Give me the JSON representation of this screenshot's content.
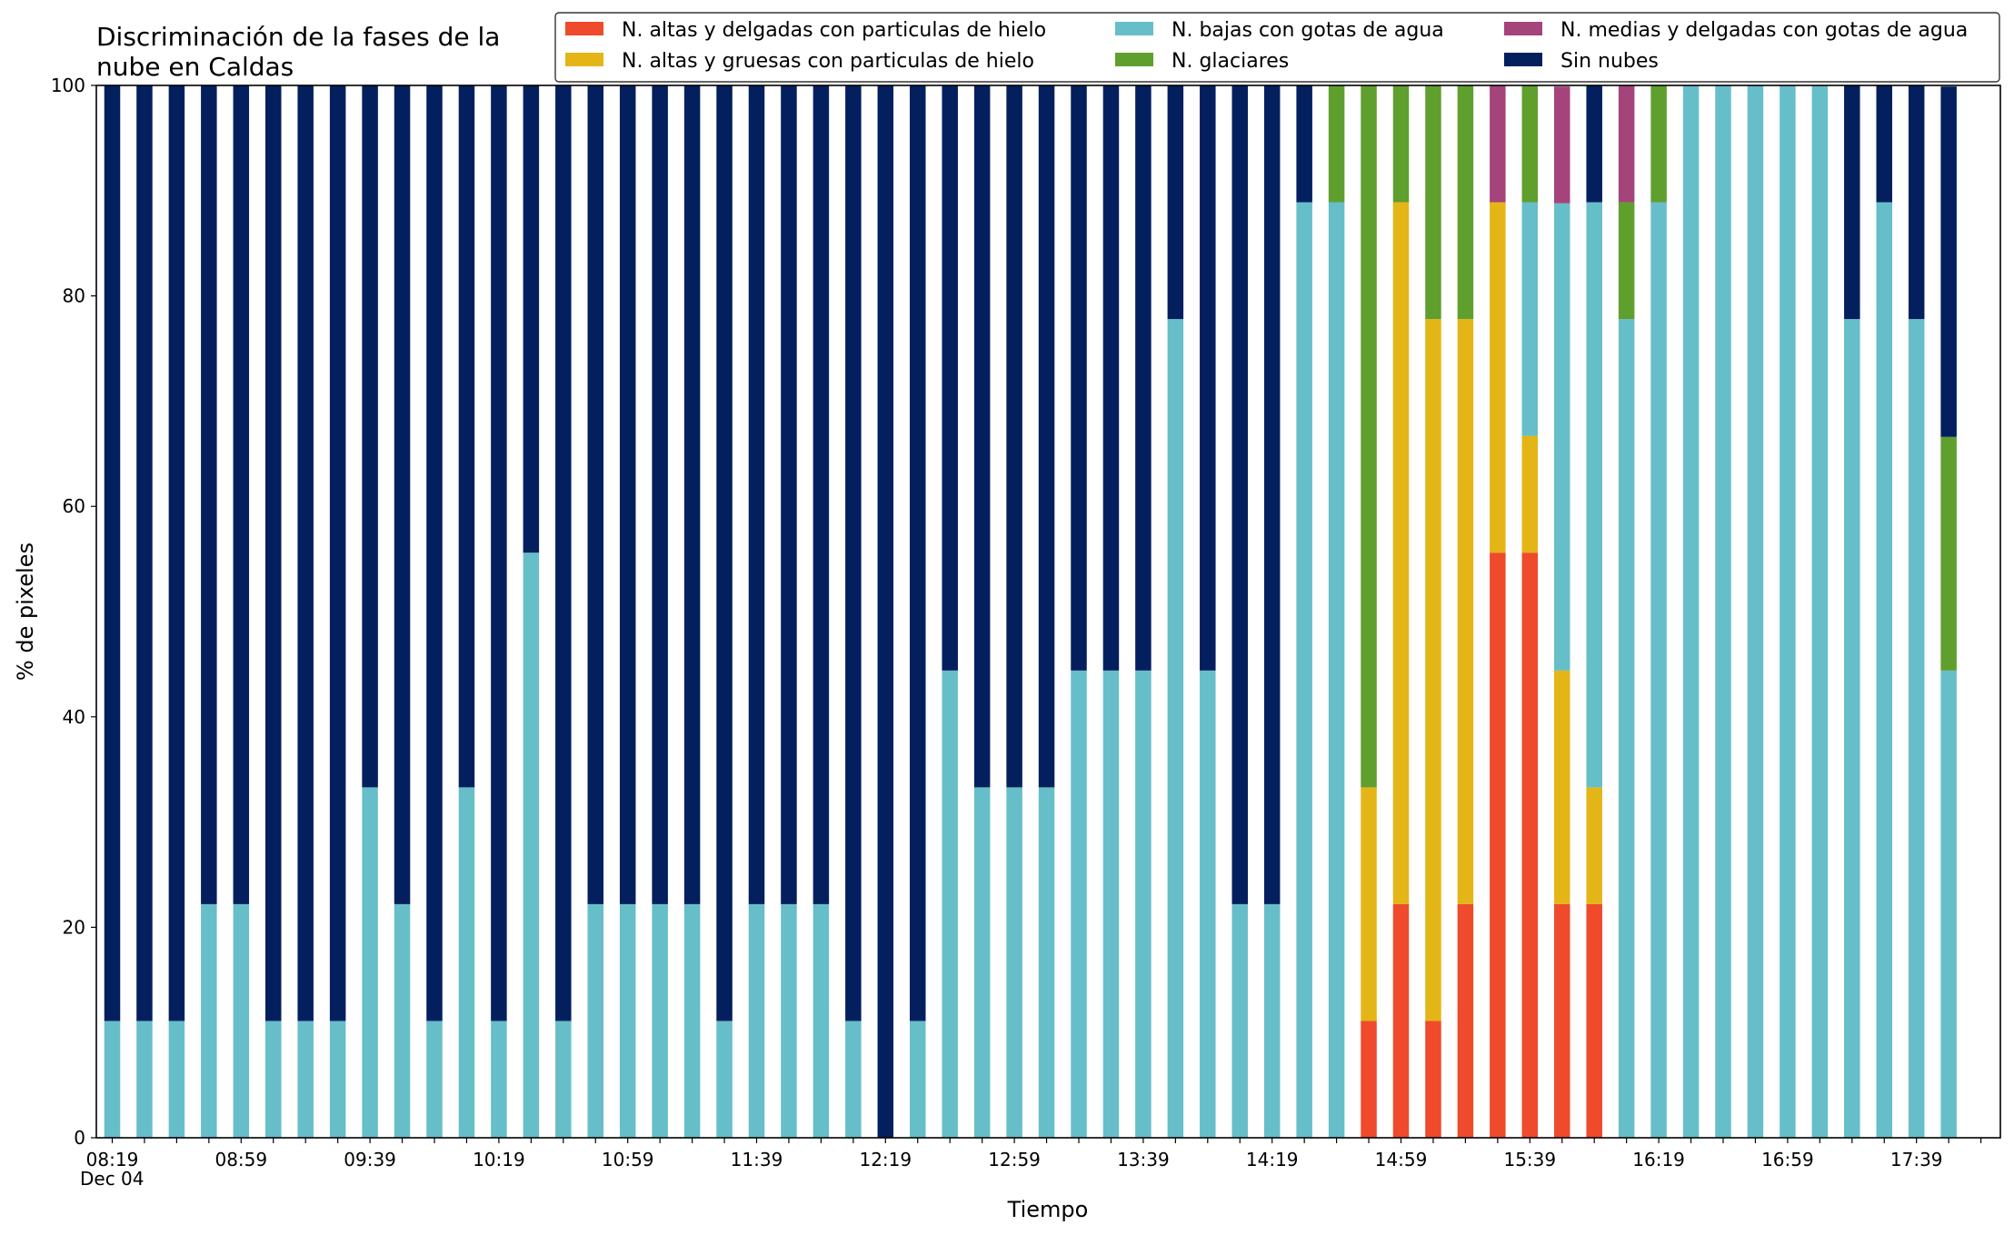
{
  "chart_data": {
    "type": "bar",
    "stacked": true,
    "title_lines": [
      "Discriminación de la fases de la",
      "nube en Caldas"
    ],
    "xlabel": "Tiempo",
    "ylabel": "% de pixeles",
    "ylim": [
      0,
      100
    ],
    "y_ticks": [
      0,
      20,
      40,
      60,
      80,
      100
    ],
    "x_tick_labels": [
      "08:19",
      "08:59",
      "09:39",
      "10:19",
      "10:59",
      "11:39",
      "12:19",
      "12:59",
      "13:39",
      "14:19",
      "14:59",
      "15:39",
      "16:19",
      "16:59",
      "17:39"
    ],
    "x_date_label": "Dec 04",
    "grid": false,
    "legend_position": "top-right",
    "categories": [
      "08:19",
      "08:29",
      "08:39",
      "08:49",
      "08:59",
      "09:09",
      "09:19",
      "09:29",
      "09:39",
      "09:49",
      "09:59",
      "10:09",
      "10:19",
      "10:29",
      "10:39",
      "10:49",
      "10:59",
      "11:09",
      "11:19",
      "11:29",
      "11:39",
      "11:49",
      "11:59",
      "12:09",
      "12:19",
      "12:29",
      "12:39",
      "12:49",
      "12:59",
      "13:09",
      "13:19",
      "13:29",
      "13:39",
      "13:49",
      "13:59",
      "14:09",
      "14:19",
      "14:29",
      "14:39",
      "14:49",
      "14:59",
      "15:09",
      "15:19",
      "15:29",
      "15:39",
      "15:49",
      "15:59",
      "16:09",
      "16:19",
      "16:29",
      "16:39",
      "16:49",
      "16:59",
      "17:09",
      "17:19",
      "17:29",
      "17:39",
      "17:49"
    ],
    "series": [
      {
        "name": "N. altas y delgadas con particulas de hielo",
        "color": "#ee4a2b",
        "values": [
          0,
          0,
          0,
          0,
          0,
          0,
          0,
          0,
          0,
          0,
          0,
          0,
          0,
          0,
          0,
          0,
          0,
          0,
          0,
          0,
          0,
          0,
          0,
          0,
          0,
          0,
          0,
          0,
          0,
          0,
          0,
          0,
          0,
          0,
          0,
          0,
          0,
          0,
          0,
          11.1,
          22.2,
          11.1,
          22.2,
          55.6,
          55.6,
          22.2,
          22.2,
          0,
          0,
          0,
          0,
          0,
          0,
          0,
          0,
          0,
          0,
          0
        ]
      },
      {
        "name": "N. altas y gruesas con particulas de hielo",
        "color": "#e4b517",
        "values": [
          0,
          0,
          0,
          0,
          0,
          0,
          0,
          0,
          0,
          0,
          0,
          0,
          0,
          0,
          0,
          0,
          0,
          0,
          0,
          0,
          0,
          0,
          0,
          0,
          0,
          0,
          0,
          0,
          0,
          0,
          0,
          0,
          0,
          0,
          0,
          0,
          0,
          0,
          0,
          22.2,
          66.7,
          66.7,
          55.6,
          33.3,
          11.1,
          22.2,
          11.1,
          0,
          0,
          0,
          0,
          0,
          0,
          0,
          0,
          0,
          0,
          0
        ]
      },
      {
        "name": "N. bajas con gotas de agua",
        "color": "#66bec9",
        "values": [
          11.1,
          11.1,
          11.1,
          22.2,
          22.2,
          11.1,
          11.1,
          11.1,
          33.3,
          22.2,
          11.1,
          33.3,
          11.1,
          55.6,
          11.1,
          22.2,
          22.2,
          22.2,
          22.2,
          11.1,
          22.2,
          22.2,
          22.2,
          11.1,
          0,
          11.1,
          44.4,
          33.3,
          33.3,
          33.3,
          44.4,
          44.4,
          44.4,
          77.8,
          44.4,
          22.2,
          22.2,
          88.9,
          88.9,
          0,
          0,
          0,
          0,
          0,
          22.2,
          44.4,
          55.6,
          77.8,
          88.9,
          100,
          100,
          100,
          100,
          100,
          77.8,
          88.9,
          77.8,
          44.4
        ]
      },
      {
        "name": "N. glaciares",
        "color": "#5f9f2e",
        "values": [
          0,
          0,
          0,
          0,
          0,
          0,
          0,
          0,
          0,
          0,
          0,
          0,
          0,
          0,
          0,
          0,
          0,
          0,
          0,
          0,
          0,
          0,
          0,
          0,
          0,
          0,
          0,
          0,
          0,
          0,
          0,
          0,
          0,
          0,
          0,
          0,
          0,
          0,
          11.1,
          66.7,
          11.1,
          22.2,
          22.2,
          0,
          11.1,
          0,
          0,
          11.1,
          11.1,
          0,
          0,
          0,
          0,
          0,
          0,
          0,
          0,
          22.2
        ]
      },
      {
        "name": "N. medias y delgadas con gotas de agua",
        "color": "#a4447b",
        "values": [
          0,
          0,
          0,
          0,
          0,
          0,
          0,
          0,
          0,
          0,
          0,
          0,
          0,
          0,
          0,
          0,
          0,
          0,
          0,
          0,
          0,
          0,
          0,
          0,
          0,
          0,
          0,
          0,
          0,
          0,
          0,
          0,
          0,
          0,
          0,
          0,
          0,
          0,
          0,
          0,
          0,
          0,
          0,
          11.1,
          0,
          11.1,
          0,
          11.1,
          0,
          0,
          0,
          0,
          0,
          0,
          0,
          0,
          0,
          0
        ]
      },
      {
        "name": "Sin nubes",
        "color": "#041f5e",
        "values": [
          88.9,
          88.9,
          88.9,
          77.8,
          77.8,
          88.9,
          88.9,
          88.9,
          66.7,
          77.8,
          88.9,
          66.7,
          88.9,
          44.4,
          88.9,
          77.8,
          77.8,
          77.8,
          77.8,
          88.9,
          77.8,
          77.8,
          77.8,
          88.9,
          100,
          88.9,
          55.6,
          66.7,
          66.7,
          66.7,
          55.6,
          55.6,
          55.6,
          22.2,
          55.6,
          77.8,
          77.8,
          11.1,
          0,
          0,
          0,
          0,
          0,
          0,
          0,
          0,
          11.1,
          0,
          0,
          0,
          0,
          0,
          0,
          0,
          22.2,
          11.1,
          22.2,
          33.3
        ]
      }
    ]
  }
}
